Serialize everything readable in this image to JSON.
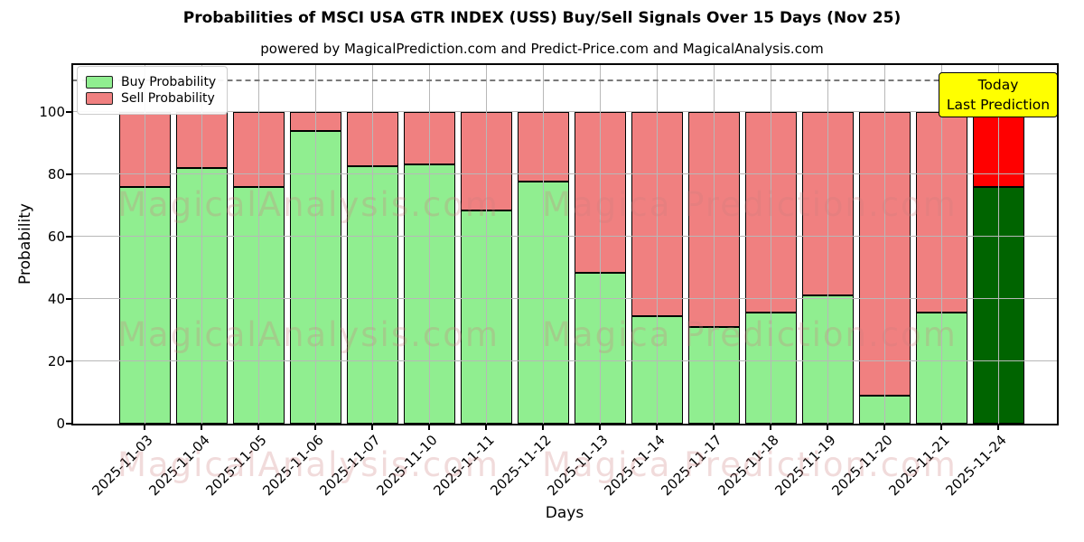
{
  "title": "Probabilities of MSCI USA GTR INDEX (USS) Buy/Sell Signals Over 15 Days (Nov 25)",
  "subtitle": "powered by MagicalPrediction.com and Predict-Price.com and MagicalAnalysis.com",
  "legend": {
    "buy_label": "Buy Probability",
    "sell_label": "Sell Probability"
  },
  "annotation": {
    "line1": "Today",
    "line2": "Last Prediction"
  },
  "watermarks": {
    "left": "MagicalAnalysis.com",
    "right": "Magica Prediction.com"
  },
  "colors": {
    "buy": "#90EE90",
    "sell": "#F08080",
    "today_buy": "#006400",
    "today_sell": "#FF0000",
    "annotation_bg": "#FFFF00",
    "grid": "#b8b8b8",
    "dashed_line": "#7a7a7a"
  },
  "chart_data": {
    "type": "bar",
    "stacked": true,
    "title": "Probabilities of MSCI USA GTR INDEX (USS) Buy/Sell Signals Over 15 Days (Nov 25)",
    "xlabel": "Days",
    "ylabel": "Probability",
    "categories": [
      "2025-11-03",
      "2025-11-04",
      "2025-11-05",
      "2025-11-06",
      "2025-11-07",
      "2025-11-10",
      "2025-11-11",
      "2025-11-12",
      "2025-11-13",
      "2025-11-14",
      "2025-11-17",
      "2025-11-18",
      "2025-11-19",
      "2025-11-20",
      "2025-11-21",
      "2025-11-24"
    ],
    "series": [
      {
        "name": "Buy Probability",
        "values": [
          76,
          82,
          76,
          94,
          82.5,
          83,
          68.5,
          77.5,
          48.5,
          34.5,
          31,
          35.5,
          41,
          9,
          35.5,
          76
        ]
      },
      {
        "name": "Sell Probability",
        "values": [
          24,
          18,
          24,
          6,
          17.5,
          17,
          31.5,
          22.5,
          51.5,
          65.5,
          69,
          64.5,
          59,
          91,
          64.5,
          24
        ]
      }
    ],
    "ylim": [
      0,
      115
    ],
    "yticks": [
      0,
      20,
      40,
      60,
      80,
      100
    ],
    "dashed_line_y": 110,
    "today_index": 15,
    "legend_position": "upper left",
    "grid": true
  }
}
